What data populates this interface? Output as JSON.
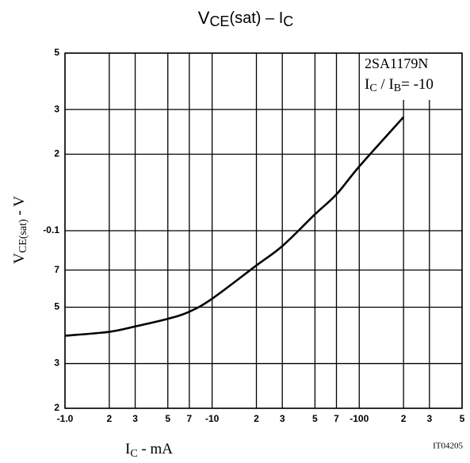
{
  "chart_data": {
    "type": "line",
    "title": [
      "V",
      "CE",
      "(sat)  –  I",
      "C"
    ],
    "x_label": [
      "I",
      "C",
      "  -  mA"
    ],
    "y_label": [
      "V",
      "CE",
      "(sat)",
      "  -  V"
    ],
    "annotation": {
      "part": "2SA1179N",
      "condition": [
        "I",
        "C",
        " / I",
        "B",
        "= -10"
      ]
    },
    "code": "IT04205",
    "log_x": true,
    "log_y": true,
    "grid": true,
    "xlim": [
      -1,
      -500
    ],
    "ylim": [
      -0.02,
      -0.5
    ],
    "xticks": [
      {
        "value": -1,
        "label": "-1.0"
      },
      {
        "value": -2,
        "label": "2"
      },
      {
        "value": -3,
        "label": "3"
      },
      {
        "value": -5,
        "label": "5"
      },
      {
        "value": -7,
        "label": "7"
      },
      -10,
      {
        "value": -20,
        "label": "2"
      },
      {
        "value": -30,
        "label": "3"
      },
      {
        "value": -50,
        "label": "5"
      },
      {
        "value": -70,
        "label": "7"
      },
      -100,
      {
        "value": -200,
        "label": "2"
      },
      {
        "value": -300,
        "label": "3"
      },
      {
        "value": -500,
        "label": "5"
      }
    ],
    "yticks": [
      {
        "value": -0.02,
        "label": "2"
      },
      {
        "value": -0.03,
        "label": "3"
      },
      {
        "value": -0.05,
        "label": "5"
      },
      {
        "value": -0.07,
        "label": "7"
      },
      -0.1,
      {
        "value": -0.2,
        "label": "2"
      },
      {
        "value": -0.3,
        "label": "3"
      },
      {
        "value": -0.5,
        "label": "5"
      }
    ],
    "x": [
      -1,
      -2,
      -3,
      -5,
      -7,
      -10,
      -20,
      -30,
      -50,
      -70,
      -100,
      -200
    ],
    "series": [
      {
        "color": "#000000",
        "values": [
          -0.0386,
          -0.04,
          -0.042,
          -0.045,
          -0.048,
          -0.054,
          -0.073,
          -0.087,
          -0.116,
          -0.139,
          -0.179,
          -0.28
        ]
      }
    ]
  }
}
